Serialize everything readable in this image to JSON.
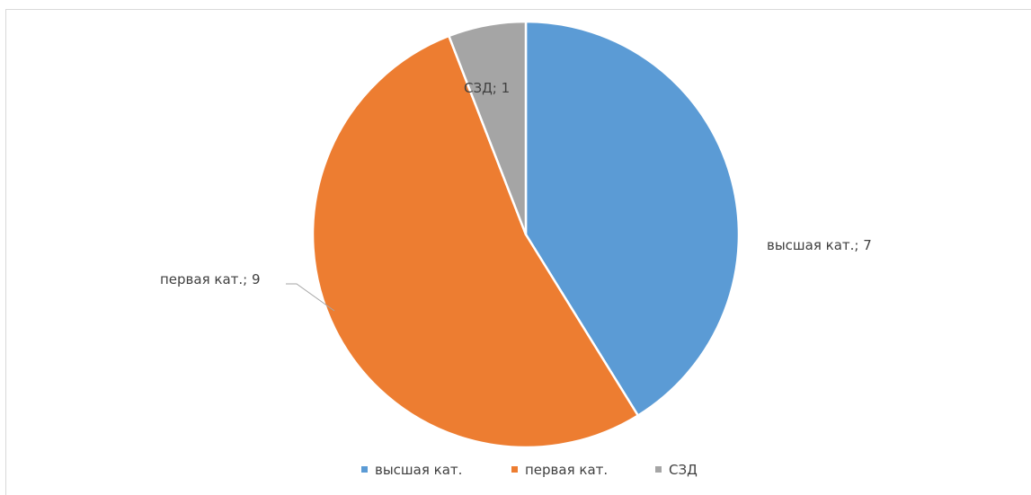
{
  "chart_data": {
    "type": "pie",
    "title": "",
    "categories": [
      "высшая кат.",
      "первая кат.",
      "СЗД"
    ],
    "values": [
      7,
      9,
      1
    ],
    "colors": [
      "#5b9bd5",
      "#ed7d31",
      "#a5a5a5"
    ],
    "data_labels": [
      "высшая кат.; 7",
      "первая кат.; 9",
      "СЗД; 1"
    ],
    "legend_position": "bottom",
    "start_angle": "top",
    "direction": "clockwise"
  }
}
